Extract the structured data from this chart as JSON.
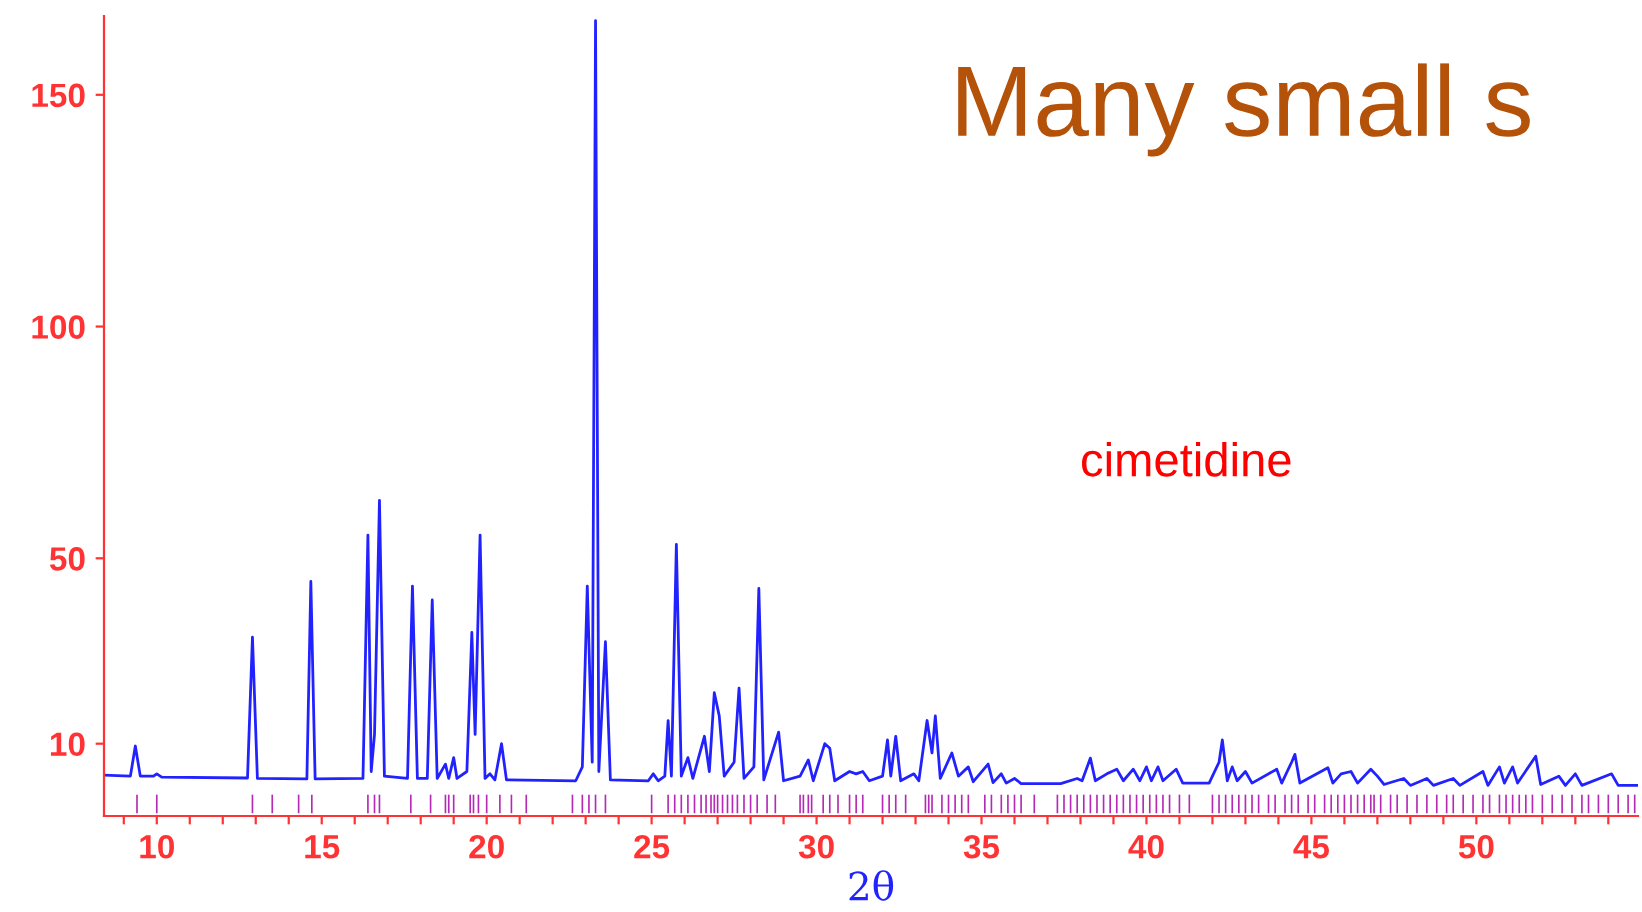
{
  "chart_data": {
    "type": "line",
    "title": "Many small s",
    "xlabel": "2θ",
    "annotations": [
      "cimetidine"
    ],
    "xlim": [
      8.4,
      54.9
    ],
    "ylim": [
      -5.6,
      167
    ],
    "yticks": [
      10,
      50,
      100,
      150
    ],
    "xticks": [
      {
        "value": 9,
        "label": null
      },
      10,
      {
        "value": 11,
        "label": null
      },
      {
        "value": 12,
        "label": null
      },
      {
        "value": 13,
        "label": null
      },
      {
        "value": 14,
        "label": null
      },
      15,
      {
        "value": 16,
        "label": null
      },
      {
        "value": 17,
        "label": null
      },
      {
        "value": 18,
        "label": null
      },
      {
        "value": 19,
        "label": null
      },
      20,
      {
        "value": 21,
        "label": null
      },
      {
        "value": 22,
        "label": null
      },
      {
        "value": 23,
        "label": null
      },
      {
        "value": 24,
        "label": null
      },
      25,
      {
        "value": 26,
        "label": null
      },
      {
        "value": 27,
        "label": null
      },
      {
        "value": 28,
        "label": null
      },
      {
        "value": 29,
        "label": null
      },
      30,
      {
        "value": 31,
        "label": null
      },
      {
        "value": 32,
        "label": null
      },
      {
        "value": 33,
        "label": null
      },
      {
        "value": 34,
        "label": null
      },
      35,
      {
        "value": 36,
        "label": null
      },
      {
        "value": 37,
        "label": null
      },
      {
        "value": 38,
        "label": null
      },
      {
        "value": 39,
        "label": null
      },
      40,
      {
        "value": 41,
        "label": null
      },
      {
        "value": 42,
        "label": null
      },
      {
        "value": 43,
        "label": null
      },
      {
        "value": 44,
        "label": null
      },
      45,
      {
        "value": 46,
        "label": null
      },
      {
        "value": 47,
        "label": null
      },
      {
        "value": 48,
        "label": null
      },
      {
        "value": 49,
        "label": null
      },
      50,
      {
        "value": 51,
        "label": null
      },
      {
        "value": 52,
        "label": null
      },
      {
        "value": 53,
        "label": null
      },
      {
        "value": 54,
        "label": null
      }
    ],
    "grid": false,
    "series": [
      {
        "color": "#2222ff",
        "x": [
          8.4,
          9.2,
          9.35,
          9.5,
          9.9,
          10.0,
          10.15,
          12.75,
          12.9,
          13.05,
          14.55,
          14.67,
          14.8,
          16.25,
          16.4,
          16.5,
          16.6,
          16.75,
          16.9,
          17.6,
          17.75,
          17.9,
          18.2,
          18.35,
          18.5,
          18.75,
          18.85,
          19.0,
          19.1,
          19.4,
          19.55,
          19.65,
          19.8,
          19.95,
          20.1,
          20.25,
          20.45,
          20.6,
          22.7,
          22.9,
          23.05,
          23.2,
          23.3,
          23.4,
          23.6,
          23.75,
          24.9,
          25.05,
          25.2,
          25.4,
          25.5,
          25.6,
          25.75,
          25.9,
          26.1,
          26.25,
          26.6,
          26.75,
          26.9,
          27.05,
          27.2,
          27.5,
          27.65,
          27.8,
          28.1,
          28.25,
          28.4,
          28.85,
          29.0,
          29.5,
          29.75,
          29.9,
          30.25,
          30.4,
          30.55,
          31.0,
          31.2,
          31.4,
          31.6,
          32.0,
          32.15,
          32.25,
          32.4,
          32.55,
          32.95,
          33.1,
          33.35,
          33.5,
          33.6,
          33.75,
          34.1,
          34.3,
          34.6,
          34.75,
          35.2,
          35.35,
          35.6,
          35.75,
          36.0,
          36.2,
          37.4,
          37.9,
          38.05,
          38.3,
          38.45,
          38.8,
          39.1,
          39.3,
          39.6,
          39.8,
          40.0,
          40.15,
          40.35,
          40.5,
          40.9,
          41.1,
          41.9,
          42.2,
          42.3,
          42.45,
          42.6,
          42.75,
          43.0,
          43.2,
          43.95,
          44.1,
          44.4,
          44.5,
          44.65,
          45.5,
          45.65,
          45.9,
          46.2,
          46.4,
          46.8,
          47.0,
          47.2,
          47.8,
          48.0,
          48.5,
          48.7,
          49.3,
          49.5,
          50.2,
          50.35,
          50.7,
          50.85,
          51.1,
          51.25,
          51.8,
          51.95,
          52.5,
          52.7,
          53.0,
          53.2,
          54.1,
          54.3,
          54.9
        ],
        "values": [
          3.2,
          3.0,
          9.5,
          3.0,
          3.0,
          3.5,
          2.8,
          2.6,
          33,
          2.5,
          2.4,
          45,
          2.4,
          2.5,
          55,
          4,
          12,
          62.5,
          3,
          2.5,
          44,
          2.5,
          2.5,
          41,
          2.5,
          5.6,
          2.5,
          7,
          2.5,
          4,
          34,
          12,
          55,
          2.5,
          3.5,
          2.2,
          10,
          2.2,
          2.0,
          5,
          44,
          6,
          166,
          4,
          32,
          2.2,
          2.0,
          3.5,
          2.0,
          3,
          15,
          3,
          53,
          3,
          7,
          2.5,
          11.6,
          4,
          21,
          16,
          3,
          6,
          22,
          2.5,
          5,
          43.5,
          2.2,
          12.5,
          2.0,
          3,
          6.5,
          2,
          10,
          9,
          2,
          4,
          3.5,
          4,
          2,
          3,
          10.8,
          3,
          11.6,
          2,
          3.5,
          2,
          15,
          8,
          16,
          2.5,
          8,
          3,
          5,
          1.8,
          5.6,
          1.6,
          3.5,
          1.5,
          2.5,
          1.4,
          1.4,
          2.5,
          2,
          6.9,
          2,
          3.5,
          4.5,
          2,
          4.5,
          2,
          5,
          2,
          5,
          2,
          4.5,
          1.5,
          1.5,
          6,
          10.8,
          2,
          5,
          2,
          4,
          1.5,
          4.5,
          1.5,
          6,
          7.7,
          1.5,
          4.8,
          1.5,
          3.5,
          4,
          1.5,
          4.5,
          3,
          1.2,
          2.5,
          1,
          2.5,
          1,
          2.5,
          1,
          4,
          1,
          5,
          1.5,
          5,
          1.5,
          7.3,
          1.2,
          3,
          1,
          3.5,
          1,
          3.5,
          1,
          1
        ]
      },
      {
        "type": "bar",
        "color": "#b42ab4",
        "x": [
          9.4,
          10.0,
          12.9,
          13.5,
          14.3,
          14.7,
          16.4,
          16.6,
          16.75,
          17.7,
          18.3,
          18.75,
          18.85,
          19.0,
          19.5,
          19.6,
          19.75,
          20.0,
          20.4,
          20.75,
          21.2,
          22.6,
          22.9,
          23.1,
          23.3,
          23.6,
          25.0,
          25.5,
          25.7,
          25.9,
          26.1,
          26.3,
          26.5,
          26.65,
          26.8,
          26.9,
          27.0,
          27.15,
          27.3,
          27.45,
          27.6,
          27.8,
          28.0,
          28.2,
          28.5,
          28.75,
          29.5,
          29.6,
          29.75,
          29.85,
          30.2,
          30.4,
          30.65,
          31.0,
          31.2,
          31.4,
          32.0,
          32.2,
          32.4,
          32.7,
          33.3,
          33.4,
          33.5,
          33.8,
          34.0,
          34.2,
          34.4,
          34.6,
          35.1,
          35.3,
          35.6,
          35.8,
          36.0,
          36.2,
          36.6,
          37.3,
          37.5,
          37.7,
          37.9,
          38.1,
          38.3,
          38.5,
          38.7,
          38.9,
          39.1,
          39.3,
          39.5,
          39.7,
          39.9,
          40.1,
          40.3,
          40.5,
          40.7,
          41.0,
          41.3,
          42.0,
          42.2,
          42.4,
          42.6,
          42.8,
          43.0,
          43.2,
          43.4,
          43.7,
          43.9,
          44.2,
          44.4,
          44.6,
          44.9,
          45.1,
          45.4,
          45.6,
          45.8,
          46.0,
          46.2,
          46.4,
          46.6,
          46.8,
          46.9,
          47.1,
          47.4,
          47.6,
          47.9,
          48.2,
          48.5,
          48.8,
          49.1,
          49.3,
          49.6,
          49.9,
          50.2,
          50.4,
          50.7,
          50.9,
          51.1,
          51.3,
          51.5,
          51.7,
          52.0,
          52.3,
          52.6,
          52.9,
          53.2,
          53.4,
          53.7,
          54.0,
          54.3,
          54.6,
          54.8
        ],
        "base": [
          -5,
          -5,
          -5,
          -5,
          -5,
          -5,
          -5,
          -5,
          -5,
          -5,
          -5,
          -5,
          -5,
          -5,
          -5,
          -5,
          -5,
          -5,
          -5,
          -5,
          -5,
          -5,
          -5,
          -5,
          -5,
          -5,
          -5,
          -5,
          -5,
          -5,
          -5,
          -5,
          -5,
          -5,
          -5,
          -5,
          -5,
          -5,
          -5,
          -5,
          -5,
          -5,
          -5,
          -5,
          -5,
          -5,
          -5,
          -5,
          -5,
          -5,
          -5,
          -5,
          -5,
          -5,
          -5,
          -5,
          -5,
          -5,
          -5,
          -5,
          -5,
          -5,
          -5,
          -5,
          -5,
          -5,
          -5,
          -5,
          -5,
          -5,
          -5,
          -5,
          -5,
          -5,
          -5,
          -5,
          -5,
          -5,
          -5,
          -5,
          -5,
          -5,
          -5,
          -5,
          -5,
          -5,
          -5,
          -5,
          -5,
          -5,
          -5,
          -5,
          -5,
          -5,
          -5,
          -5,
          -5,
          -5,
          -5,
          -5,
          -5,
          -5,
          -5,
          -5,
          -5,
          -5,
          -5,
          -5,
          -5,
          -5,
          -5,
          -5,
          -5,
          -5,
          -5,
          -5,
          -5,
          -5,
          -5,
          -5,
          -5,
          -5,
          -5,
          -5,
          -5,
          -5,
          -5,
          -5,
          -5,
          -5,
          -5,
          -5,
          -5,
          -5,
          -5,
          -5,
          -5,
          -5,
          -5,
          -5,
          -5,
          -5,
          -5,
          -5,
          -5,
          -5,
          -5,
          -5,
          -5
        ],
        "values": [
          4,
          4,
          4,
          4,
          4,
          4,
          4,
          4,
          4,
          4,
          4,
          4,
          4,
          4,
          4,
          4,
          4,
          4,
          4,
          4,
          4,
          4,
          4,
          4,
          4,
          4,
          4,
          4,
          4,
          4,
          4,
          4,
          4,
          4,
          4,
          4,
          4,
          4,
          4,
          4,
          4,
          4,
          4,
          4,
          4,
          4,
          4,
          4,
          4,
          4,
          4,
          4,
          4,
          4,
          4,
          4,
          4,
          4,
          4,
          4,
          4,
          4,
          4,
          4,
          4,
          4,
          4,
          4,
          4,
          4,
          4,
          4,
          4,
          4,
          4,
          4,
          4,
          4,
          4,
          4,
          4,
          4,
          4,
          4,
          4,
          4,
          4,
          4,
          4,
          4,
          4,
          4,
          4,
          4,
          4,
          4,
          4,
          4,
          4,
          4,
          4,
          4,
          4,
          4,
          4,
          4,
          4,
          4,
          4,
          4,
          4,
          4,
          4,
          4,
          4,
          4,
          4,
          4,
          4,
          4,
          4,
          4,
          4,
          4,
          4,
          4,
          4,
          4,
          4,
          4,
          4,
          4,
          4,
          4,
          4,
          4,
          4,
          4,
          4,
          4,
          4,
          4,
          4,
          4,
          4,
          4,
          4,
          4,
          4
        ]
      }
    ]
  }
}
